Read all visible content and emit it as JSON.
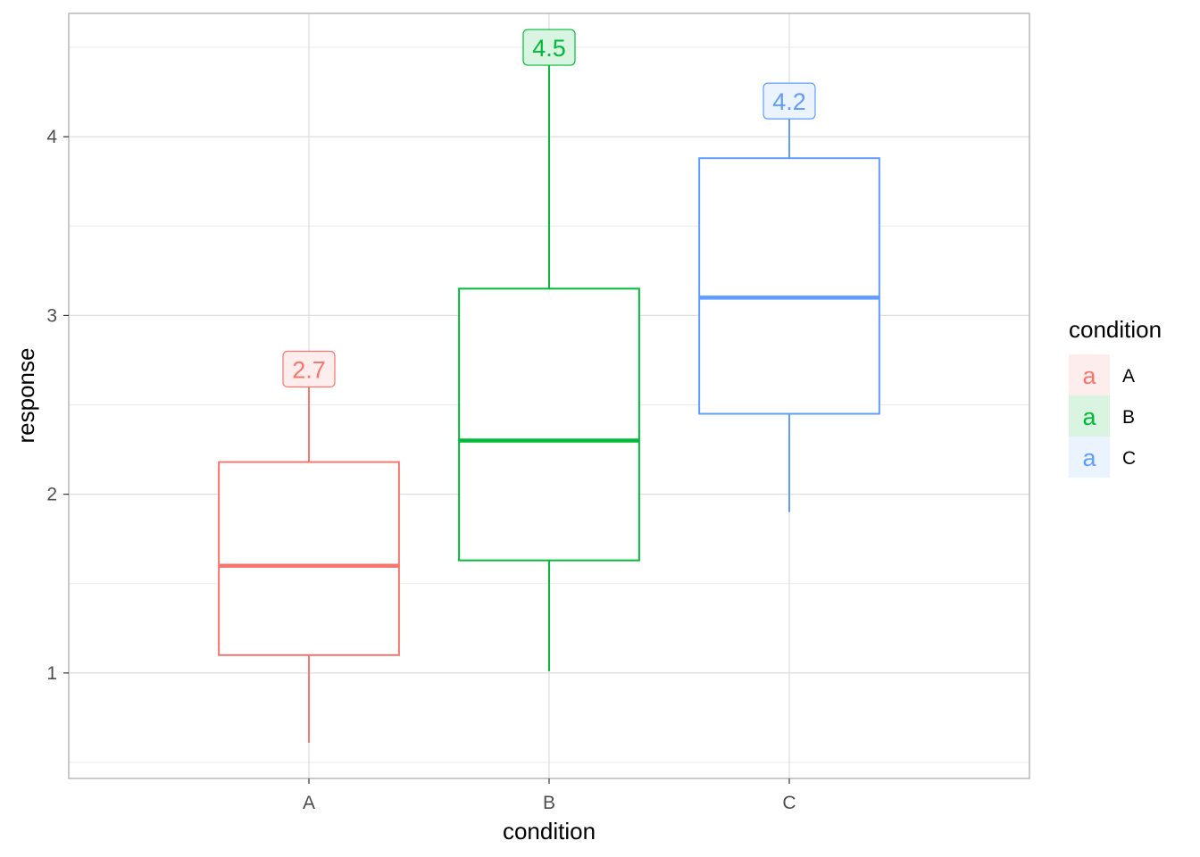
{
  "chart_data": {
    "type": "box",
    "xlabel": "condition",
    "ylabel": "response",
    "categories": [
      "A",
      "B",
      "C"
    ],
    "ylim": [
      0.41,
      4.69
    ],
    "yticks": [
      "1",
      "2",
      "3",
      "4"
    ],
    "grid": true,
    "boxes": [
      {
        "category": "A",
        "min": 0.61,
        "q1": 1.1,
        "median": 1.6,
        "q3": 2.18,
        "max": 2.7,
        "label": "2.7",
        "color": "#F8766D",
        "fill": "#FDEDEC"
      },
      {
        "category": "B",
        "min": 1.01,
        "q1": 1.63,
        "median": 2.3,
        "q3": 3.15,
        "max": 4.5,
        "label": "4.5",
        "color": "#00BA38",
        "fill": "#D9F5E1"
      },
      {
        "category": "C",
        "min": 1.9,
        "q1": 2.45,
        "median": 3.1,
        "q3": 3.88,
        "max": 4.2,
        "label": "4.2",
        "color": "#619CFF",
        "fill": "#EBF3FF"
      }
    ],
    "legend": {
      "title": "condition",
      "position": "right",
      "key_glyph": "a",
      "items": [
        {
          "label": "A",
          "color": "#F8766D",
          "fill": "#FDEDEC"
        },
        {
          "label": "B",
          "color": "#00BA38",
          "fill": "#D9F5E1"
        },
        {
          "label": "C",
          "color": "#619CFF",
          "fill": "#EBF3FF"
        }
      ]
    }
  }
}
